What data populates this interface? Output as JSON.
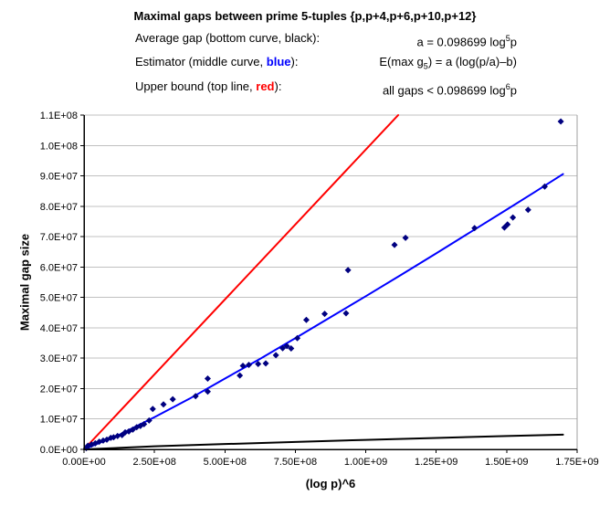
{
  "header": {
    "title": "Maximal gaps between prime 5-tuples {p,p+4,p+6,p+10,p+12}",
    "rows": [
      {
        "pre": "Average gap (bottom curve, ",
        "word": "black",
        "post": "):",
        "word_color": "#000000",
        "word_bold": false,
        "f1": "a = 0.098699 log",
        "sup": "5",
        "f2": "p"
      },
      {
        "pre": "Estimator (middle curve, ",
        "word": "blue",
        "post": "):",
        "word_color": "#0000ff",
        "word_bold": true,
        "f1": "E(max g",
        "sub": "5",
        "f2": ") = a (log(p/a)–b)"
      },
      {
        "pre": "Upper bound (top line, ",
        "word": "red",
        "post": "):",
        "word_color": "#ff0000",
        "word_bold": true,
        "f1": "all gaps < 0.098699 log",
        "sup": "6",
        "f2": "p"
      }
    ]
  },
  "chart_data": {
    "type": "scatter",
    "title": "Maximal gaps between prime 5-tuples {p,p+4,p+6,p+10,p+12}",
    "xlabel": "(log p)^6",
    "ylabel": "Maximal gap size",
    "xlim": [
      0,
      1750000000.0
    ],
    "ylim": [
      0,
      110000000.0
    ],
    "grid": "horizontal",
    "legend_position": "none",
    "colors": {
      "gridline": "#c0c0c0",
      "axis": "#000000",
      "plot_border": "#a0a0a0"
    },
    "x_ticks": {
      "values": [
        0,
        250000000.0,
        500000000.0,
        750000000.0,
        1000000000.0,
        1250000000.0,
        1500000000.0,
        1750000000.0
      ],
      "labels": [
        "0.00E+00",
        "2.50E+08",
        "5.00E+08",
        "7.50E+08",
        "1.00E+09",
        "1.25E+09",
        "1.50E+09",
        "1.75E+09"
      ]
    },
    "y_ticks": {
      "values": [
        0,
        10000000.0,
        20000000.0,
        30000000.0,
        40000000.0,
        50000000.0,
        60000000.0,
        70000000.0,
        80000000.0,
        90000000.0,
        100000000.0,
        110000000.0
      ],
      "labels": [
        "0.0E+00",
        "1.0E+07",
        "2.0E+07",
        "3.0E+07",
        "4.0E+07",
        "5.0E+07",
        "6.0E+07",
        "7.0E+07",
        "8.0E+07",
        "9.0E+07",
        "1.0E+08",
        "1.1E+08"
      ]
    },
    "series": [
      {
        "name": "upper-bound-line",
        "type": "line",
        "color": "#ff0000",
        "width": 2,
        "points": [
          [
            0,
            0
          ],
          [
            1115000000.0,
            110000000.0
          ]
        ]
      },
      {
        "name": "average-gap-line",
        "type": "line",
        "color": "#000000",
        "width": 2,
        "points": [
          [
            0,
            0
          ],
          [
            250000000.0,
            1000000.0
          ],
          [
            500000000.0,
            1750000.0
          ],
          [
            750000000.0,
            2460000.0
          ],
          [
            1000000000.0,
            3120000.0
          ],
          [
            1250000000.0,
            3760000.0
          ],
          [
            1500000000.0,
            4380000.0
          ],
          [
            1700000000.0,
            4860000.0
          ]
        ]
      },
      {
        "name": "estimator-line",
        "type": "line",
        "color": "#0000ff",
        "width": 2,
        "points": [
          [
            0,
            0
          ],
          [
            125000000.0,
            4800000.0
          ],
          [
            250000000.0,
            10600000.0
          ],
          [
            375000000.0,
            16700000.0
          ],
          [
            500000000.0,
            23300000.0
          ],
          [
            625000000.0,
            29800000.0
          ],
          [
            750000000.0,
            36600000.0
          ],
          [
            875000000.0,
            43500000.0
          ],
          [
            1000000000.0,
            50400000.0
          ],
          [
            1125000000.0,
            57400000.0
          ],
          [
            1250000000.0,
            64500000.0
          ],
          [
            1375000000.0,
            71700000.0
          ],
          [
            1500000000.0,
            78900000.0
          ],
          [
            1600000000.0,
            84700000.0
          ],
          [
            1700000000.0,
            90600000.0
          ]
        ]
      },
      {
        "name": "maximal-gap-points",
        "type": "scatter",
        "color": "#000080",
        "size": 7,
        "points": [
          [
            8000000.0,
            400000.0
          ],
          [
            14000000.0,
            1200000.0
          ],
          [
            27000000.0,
            1600000.0
          ],
          [
            40000000.0,
            2000000.0
          ],
          [
            54000000.0,
            2500000.0
          ],
          [
            68000000.0,
            2900000.0
          ],
          [
            81000000.0,
            3200000.0
          ],
          [
            95000000.0,
            3800000.0
          ],
          [
            105000000.0,
            4000000.0
          ],
          [
            119000000.0,
            4400000.0
          ],
          [
            135000000.0,
            4700000.0
          ],
          [
            146000000.0,
            5600000.0
          ],
          [
            159000000.0,
            5900000.0
          ],
          [
            173000000.0,
            6500000.0
          ],
          [
            187000000.0,
            7300000.0
          ],
          [
            200000000.0,
            7700000.0
          ],
          [
            213000000.0,
            8300000.0
          ],
          [
            231000000.0,
            9500000.0
          ],
          [
            244000000.0,
            13300000.0
          ],
          [
            282000000.0,
            14800000.0
          ],
          [
            315000000.0,
            16500000.0
          ],
          [
            396000000.0,
            17500000.0
          ],
          [
            439000000.0,
            19000000.0
          ],
          [
            439000000.0,
            23300000.0
          ],
          [
            553000000.0,
            24300000.0
          ],
          [
            564000000.0,
            27500000.0
          ],
          [
            585000000.0,
            27800000.0
          ],
          [
            618000000.0,
            28100000.0
          ],
          [
            645000000.0,
            28300000.0
          ],
          [
            681000000.0,
            31000000.0
          ],
          [
            705000000.0,
            33300000.0
          ],
          [
            720000000.0,
            34000000.0
          ],
          [
            735000000.0,
            33200000.0
          ],
          [
            757000000.0,
            36600000.0
          ],
          [
            789000000.0,
            42600000.0
          ],
          [
            854000000.0,
            44600000.0
          ],
          [
            930000000.0,
            44800000.0
          ],
          [
            937000000.0,
            59000000.0
          ],
          [
            1102000000.0,
            67300000.0
          ],
          [
            1141000000.0,
            69600000.0
          ],
          [
            1386000000.0,
            72800000.0
          ],
          [
            1492000000.0,
            73000000.0
          ],
          [
            1503000000.0,
            74000000.0
          ],
          [
            1522000000.0,
            76300000.0
          ],
          [
            1576000000.0,
            78800000.0
          ],
          [
            1635000000.0,
            86500000.0
          ],
          [
            1692000000.0,
            107900000.0
          ]
        ]
      }
    ]
  }
}
